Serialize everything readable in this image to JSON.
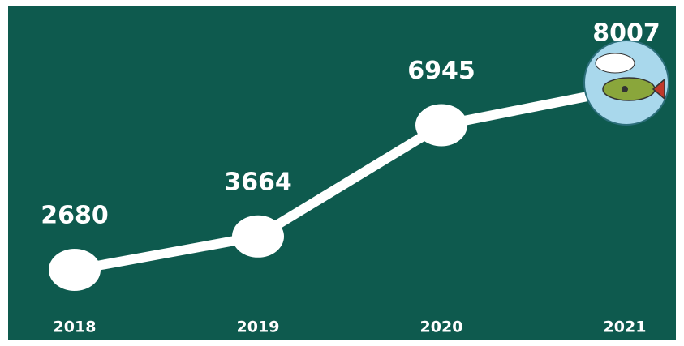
{
  "chart_data": {
    "type": "line",
    "categories": [
      "2018",
      "2019",
      "2020",
      "2021"
    ],
    "values": [
      2680,
      3664,
      6945,
      8007
    ],
    "color": "#ffffff",
    "background": "#0e5a4e"
  }
}
